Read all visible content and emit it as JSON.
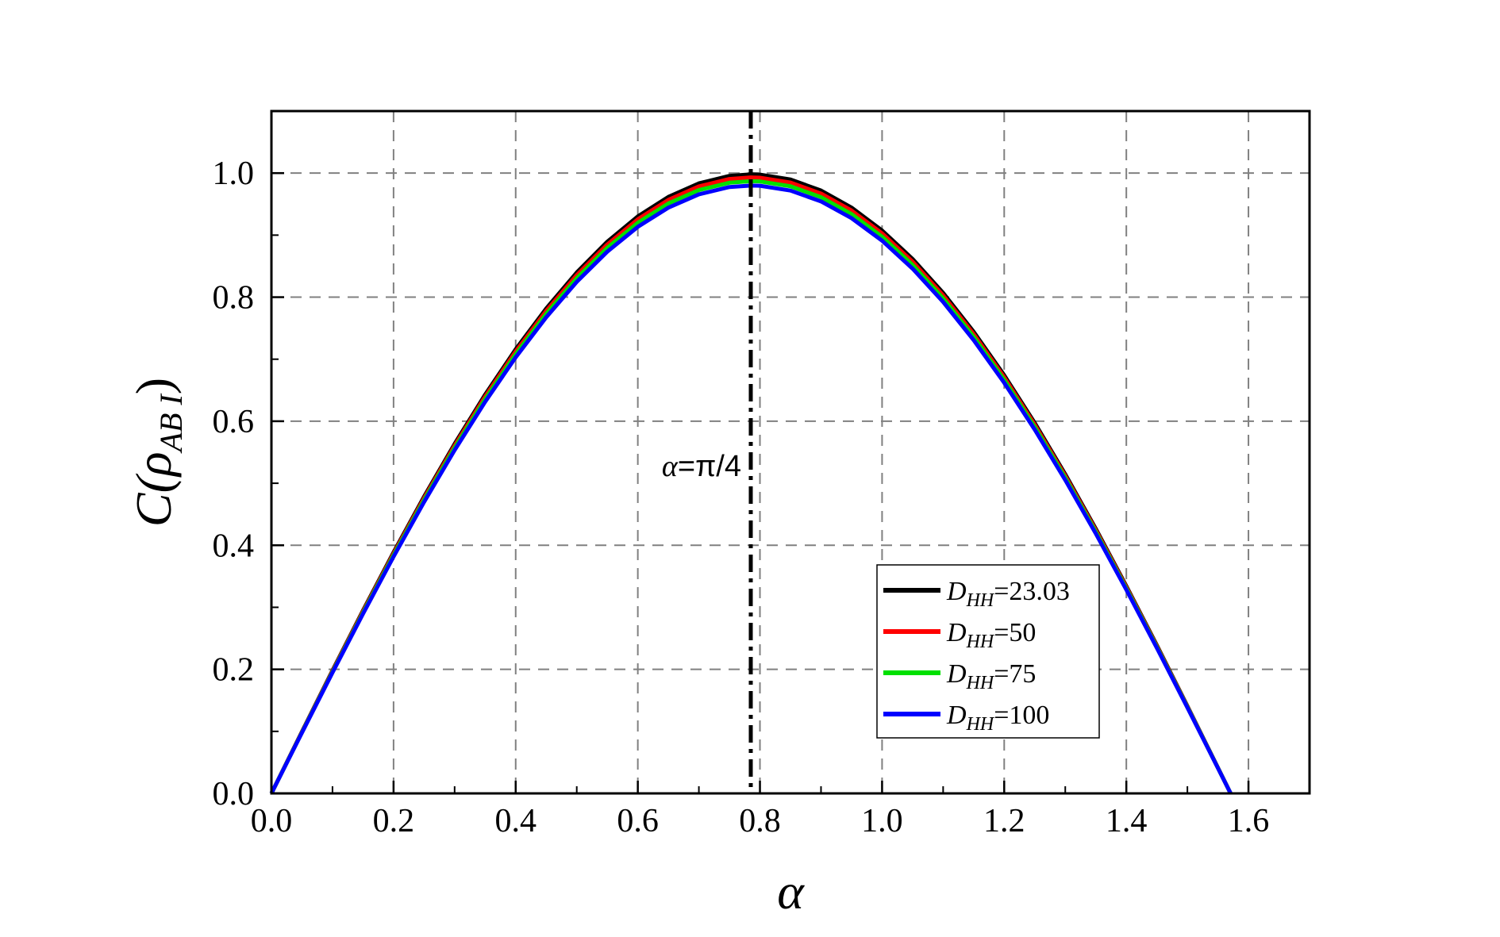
{
  "chart_data": {
    "type": "line",
    "xlabel": "α",
    "ylabel": {
      "main": "C(ρ",
      "sub": "AB I",
      "close": ")"
    },
    "xlim": [
      0.0,
      1.7
    ],
    "ylim": [
      0.0,
      1.1
    ],
    "xticks": [
      0.0,
      0.2,
      0.4,
      0.6,
      0.8,
      1.0,
      1.2,
      1.4,
      1.6
    ],
    "yticks": [
      0.0,
      0.2,
      0.4,
      0.6,
      0.8,
      1.0
    ],
    "xtick_labels": [
      "0.0",
      "0.2",
      "0.4",
      "0.6",
      "0.8",
      "1.0",
      "1.2",
      "1.4",
      "1.6"
    ],
    "ytick_labels": [
      "0.0",
      "0.2",
      "0.4",
      "0.6",
      "0.8",
      "1.0"
    ],
    "grid": true,
    "legend_position": "bottom-right",
    "series": [
      {
        "name": "D_HH=23.03",
        "label_var": "D",
        "label_sub": "HH",
        "label_val": "=23.03",
        "color": "#000000",
        "peak": 0.998
      },
      {
        "name": "D_HH=50",
        "label_var": "D",
        "label_sub": "HH",
        "label_val": "=50",
        "color": "#ff0000",
        "peak": 0.993
      },
      {
        "name": "D_HH=75",
        "label_var": "D",
        "label_sub": "HH",
        "label_val": "=75",
        "color": "#00e000",
        "peak": 0.987
      },
      {
        "name": "D_HH=100",
        "label_var": "D",
        "label_sub": "HH",
        "label_val": "=100",
        "color": "#0000ff",
        "peak": 0.98
      }
    ],
    "x": [
      0.0,
      0.05,
      0.1,
      0.15,
      0.2,
      0.25,
      0.3,
      0.35,
      0.4,
      0.45,
      0.5,
      0.55,
      0.6,
      0.65,
      0.7,
      0.75,
      0.785,
      0.8,
      0.85,
      0.9,
      0.95,
      1.0,
      1.05,
      1.1,
      1.15,
      1.2,
      1.25,
      1.3,
      1.35,
      1.4,
      1.45,
      1.5,
      1.55,
      1.5708
    ],
    "reference_line": {
      "x": 0.785,
      "label_var": "α",
      "label_rest": "=π/4"
    }
  }
}
